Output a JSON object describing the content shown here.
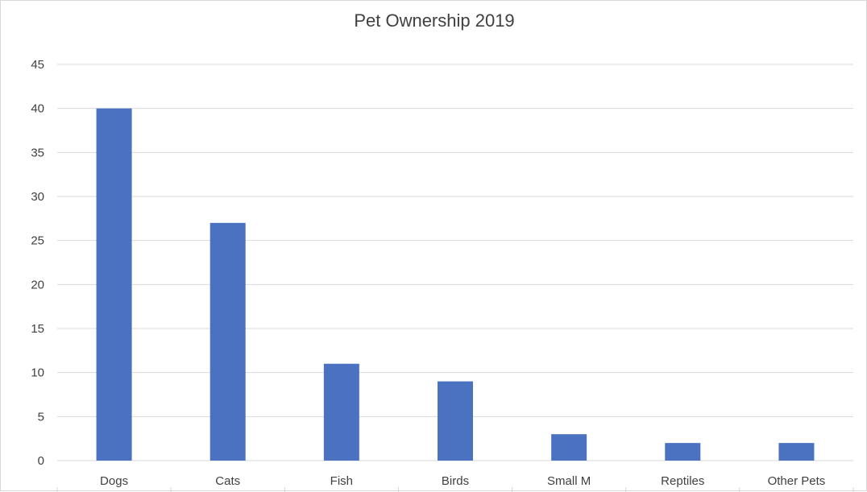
{
  "chart_data": {
    "type": "bar",
    "title": "Pet Ownership 2019",
    "xlabel": "",
    "ylabel": "",
    "categories": [
      "Dogs",
      "Cats",
      "Fish",
      "Birds",
      "Small M",
      "Reptiles",
      "Other Pets"
    ],
    "values": [
      40,
      27,
      11,
      9,
      3,
      2,
      2
    ],
    "ylim": [
      0,
      45
    ],
    "yticks": [
      0,
      5,
      10,
      15,
      20,
      25,
      30,
      35,
      40,
      45
    ],
    "grid": true,
    "legend": "none",
    "colors": {
      "bar": "#4a72c0",
      "grid": "#d9d9d9",
      "text": "#404040"
    }
  }
}
